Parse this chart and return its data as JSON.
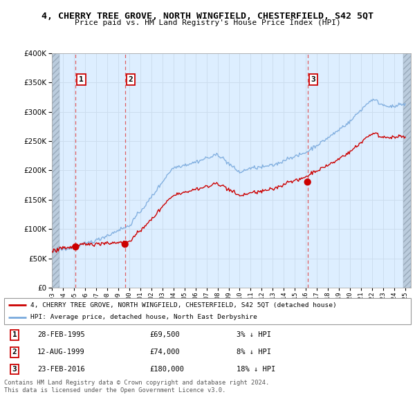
{
  "title": "4, CHERRY TREE GROVE, NORTH WINGFIELD, CHESTERFIELD, S42 5QT",
  "subtitle": "Price paid vs. HM Land Registry's House Price Index (HPI)",
  "ylim": [
    0,
    400000
  ],
  "yticks": [
    0,
    50000,
    100000,
    150000,
    200000,
    250000,
    300000,
    350000,
    400000
  ],
  "sale_dates": [
    1995.15,
    1999.62,
    2016.15
  ],
  "sale_prices": [
    69500,
    74000,
    180000
  ],
  "sale_labels": [
    "1",
    "2",
    "3"
  ],
  "hpi_color": "#7aaadd",
  "price_color": "#cc0000",
  "dashed_line_color": "#dd4444",
  "grid_color": "#ccddee",
  "bg_color": "#ddeeff",
  "hatch_color": "#bbccdd",
  "legend_line1": "4, CHERRY TREE GROVE, NORTH WINGFIELD, CHESTERFIELD, S42 5QT (detached house)",
  "legend_line2": "HPI: Average price, detached house, North East Derbyshire",
  "table_rows": [
    {
      "label": "1",
      "date": "28-FEB-1995",
      "price": "£69,500",
      "hpi": "3% ↓ HPI"
    },
    {
      "label": "2",
      "date": "12-AUG-1999",
      "price": "£74,000",
      "hpi": "8% ↓ HPI"
    },
    {
      "label": "3",
      "date": "23-FEB-2016",
      "price": "£180,000",
      "hpi": "18% ↓ HPI"
    }
  ],
  "footer": "Contains HM Land Registry data © Crown copyright and database right 2024.\nThis data is licensed under the Open Government Licence v3.0."
}
